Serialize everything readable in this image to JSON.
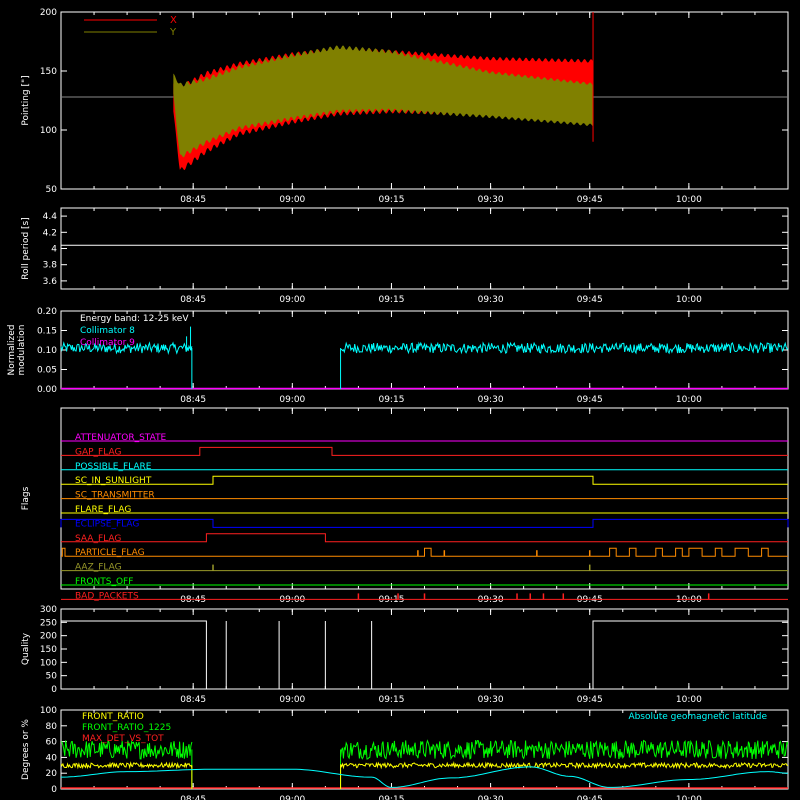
{
  "colors": {
    "background": "#000000",
    "axis": "#ffffff",
    "x": "#ff0000",
    "y": "#808000",
    "cyan": "#00ffff",
    "magenta": "#ff00ff",
    "red": "#ff2020",
    "orange": "#ff8c00",
    "yellow": "#ffff00",
    "blue": "#0000ff",
    "olive": "#9a9a2a",
    "green": "#00ff00",
    "white": "#ffffff"
  },
  "chart_data": [
    {
      "id": "pointing",
      "type": "area",
      "ylabel": "Pointing [\"]",
      "xlim": [
        "08:25",
        "10:15"
      ],
      "ylim": [
        50,
        200
      ],
      "xticks": [
        "08:45",
        "09:00",
        "09:15",
        "09:30",
        "09:45",
        "10:00"
      ],
      "yticks": [
        50,
        100,
        150,
        200
      ],
      "legend": [
        "X",
        "Y"
      ],
      "legend_position": "top-left",
      "reference_line": 128,
      "series": [
        {
          "name": "X",
          "envelope": {
            "time": [
              "08:42",
              "08:43",
              "08:47",
              "08:52",
              "09:00",
              "09:07",
              "09:15",
              "09:30",
              "09:45.5"
            ],
            "upper": [
              140,
              138,
              150,
              158,
              166,
              170,
              168,
              162,
              160
            ],
            "lower": [
              115,
              63,
              80,
              95,
              105,
              112,
              114,
              112,
              110
            ]
          }
        },
        {
          "name": "Y",
          "envelope": {
            "time": [
              "08:42",
              "08:43",
              "08:47",
              "08:52",
              "09:00",
              "09:07",
              "09:15",
              "09:30",
              "09:45.5"
            ],
            "upper": [
              148,
              140,
              145,
              155,
              165,
              172,
              168,
              150,
              140
            ],
            "lower": [
              130,
              75,
              88,
              100,
              108,
              114,
              115,
              110,
              103
            ]
          }
        }
      ]
    },
    {
      "id": "roll",
      "type": "line",
      "ylabel": "Roll period [s]",
      "xlim": [
        "08:25",
        "10:15"
      ],
      "ylim": [
        3.5,
        4.5
      ],
      "xticks": [
        "08:45",
        "09:00",
        "09:15",
        "09:30",
        "09:45",
        "10:00"
      ],
      "yticks": [
        3.6,
        3.8,
        4.0,
        4.2,
        4.4
      ],
      "series": [
        {
          "time": [
            "08:25",
            "10:15"
          ],
          "values": [
            4.04,
            4.04
          ]
        }
      ]
    },
    {
      "id": "modulation",
      "type": "line",
      "ylabel": "Normalized modulation",
      "xlim": [
        "08:25",
        "10:15"
      ],
      "ylim": [
        0,
        0.2
      ],
      "xticks": [
        "08:45",
        "09:00",
        "09:15",
        "09:30",
        "09:45",
        "10:00"
      ],
      "yticks": [
        "0.00",
        "0.05",
        "0.10",
        "0.15",
        "0.20"
      ],
      "annotation": "Energy band: 12-25 keV",
      "series": [
        {
          "name": "Collimator 8",
          "segments": [
            {
              "time_start": "08:25",
              "time_end": "08:44.8",
              "level": 0.105,
              "noise": 0.013
            },
            {
              "time_start": "09:07.3",
              "time_end": "10:15",
              "level": 0.105,
              "noise": 0.013
            }
          ],
          "spikes": [
            {
              "time": "08:44",
              "value": 0.135
            },
            {
              "time": "08:44.6",
              "value": 0.16
            }
          ]
        },
        {
          "name": "Collimator 9",
          "time": [
            "08:25",
            "10:15"
          ],
          "values": [
            0,
            0
          ]
        }
      ]
    },
    {
      "id": "flags",
      "type": "line",
      "ylabel": "Flags",
      "xlim": [
        "08:25",
        "10:15"
      ],
      "xticks": [
        "08:45",
        "09:00",
        "09:15",
        "09:30",
        "09:45",
        "10:00"
      ],
      "series": [
        {
          "name": "ATTENUATOR_STATE",
          "color": "magenta",
          "high": []
        },
        {
          "name": "GAP_FLAG",
          "color": "red",
          "high": [
            [
              "08:46",
              "09:06"
            ]
          ]
        },
        {
          "name": "POSSIBLE_FLARE",
          "color": "cyan",
          "high": []
        },
        {
          "name": "SC_IN_SUNLIGHT",
          "color": "yellow",
          "high": [
            [
              "08:48",
              "09:45.5"
            ]
          ]
        },
        {
          "name": "SC_TRANSMITTER",
          "color": "orange",
          "high": []
        },
        {
          "name": "FLARE_FLAG",
          "color": "yellow",
          "high": []
        },
        {
          "name": "ECLIPSE_FLAG",
          "color": "blue",
          "high": [
            [
              "08:25",
              "08:48"
            ],
            [
              "09:45.5",
              "10:15"
            ]
          ]
        },
        {
          "name": "SAA_FLAG",
          "color": "red",
          "high": [
            [
              "08:47",
              "09:05"
            ]
          ]
        },
        {
          "name": "PARTICLE_FLAG",
          "color": "orange",
          "high": [
            [
              "08:25.2",
              "08:25.6"
            ],
            [
              "09:20",
              "09:21"
            ],
            [
              "09:48",
              "09:49"
            ],
            [
              "09:51",
              "09:52"
            ],
            [
              "09:55",
              "09:56"
            ],
            [
              "09:58",
              "09:59"
            ],
            [
              "10:00",
              "10:02"
            ],
            [
              "10:04",
              "10:05"
            ],
            [
              "10:07",
              "10:09"
            ],
            [
              "10:11",
              "10:12"
            ]
          ],
          "ticks": [
            "09:19",
            "09:23",
            "09:37",
            "09:45"
          ]
        },
        {
          "name": "AAZ_FLAG",
          "color": "olive",
          "high": [],
          "ticks": [
            "08:48",
            "09:45"
          ]
        },
        {
          "name": "FRONTS_OFF",
          "color": "green",
          "high": []
        },
        {
          "name": "BAD_PACKETS",
          "color": "red",
          "high": [],
          "ticks": [
            "09:10",
            "09:16",
            "09:20",
            "09:34",
            "09:36",
            "09:38",
            "09:41",
            "10:03"
          ]
        }
      ]
    },
    {
      "id": "quality",
      "type": "line",
      "ylabel": "Quality",
      "xlim": [
        "08:25",
        "10:15"
      ],
      "ylim": [
        0,
        300
      ],
      "xticks": [
        "08:45",
        "09:00",
        "09:15",
        "09:30",
        "09:45",
        "10:00"
      ],
      "yticks": [
        0,
        50,
        100,
        150,
        200,
        250,
        300
      ],
      "series": [
        {
          "time": [
            "08:25",
            "08:47",
            "08:47",
            "09:45.5",
            "09:45.5",
            "10:15"
          ],
          "values": [
            255,
            255,
            0,
            0,
            255,
            255
          ],
          "spikes": [
            "08:50",
            "08:58",
            "09:05",
            "09:12"
          ]
        }
      ]
    },
    {
      "id": "front",
      "type": "line",
      "ylabel": "Degrees or %",
      "xlim": [
        "08:25",
        "10:15"
      ],
      "ylim": [
        0,
        100
      ],
      "xticks": [
        "08:45",
        "09:00",
        "09:15",
        "09:30",
        "09:45",
        "10:00"
      ],
      "yticks": [
        0,
        20,
        40,
        60,
        80,
        100
      ],
      "legend_position": "top-left",
      "series": [
        {
          "name": "FRONT_RATIO",
          "color": "yellow",
          "level": 30,
          "noise": 3,
          "gap": [
            "08:44.8",
            "09:07.3"
          ]
        },
        {
          "name": "FRONT_RATIO_1225",
          "color": "green",
          "level": 50,
          "noise": 12,
          "gap": [
            "08:44.8",
            "09:07.3"
          ]
        },
        {
          "name": "MAX_DET_VS_TOT",
          "color": "red",
          "level": 0,
          "noise": 0
        },
        {
          "name": "Absolute geomagnetic latitude",
          "color": "cyan",
          "time": [
            "08:25",
            "08:35",
            "08:48",
            "09:00",
            "09:12",
            "09:15",
            "09:24",
            "09:36",
            "09:42",
            "09:48",
            "10:00",
            "10:12",
            "10:15"
          ],
          "values": [
            15,
            22,
            25,
            25,
            15,
            2,
            14,
            28,
            16,
            2,
            12,
            22,
            20
          ]
        }
      ]
    }
  ]
}
